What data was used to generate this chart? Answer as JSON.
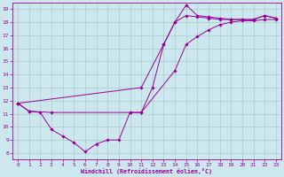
{
  "xlabel": "Windchill (Refroidissement éolien,°C)",
  "background_color": "#cce8ee",
  "line_color": "#990099",
  "grid_color": "#aacccc",
  "xlim": [
    -0.5,
    23.5
  ],
  "ylim": [
    7.5,
    19.5
  ],
  "xticks": [
    0,
    1,
    2,
    3,
    4,
    5,
    6,
    7,
    8,
    9,
    10,
    11,
    12,
    13,
    14,
    15,
    16,
    17,
    18,
    19,
    20,
    21,
    22,
    23
  ],
  "yticks": [
    8,
    9,
    10,
    11,
    12,
    13,
    14,
    15,
    16,
    17,
    18,
    19
  ],
  "line1_x": [
    0,
    1,
    2,
    3,
    4,
    5,
    6,
    7,
    8,
    9,
    10,
    11,
    12,
    13,
    14,
    15,
    16,
    17,
    18,
    19,
    20,
    21,
    22,
    23
  ],
  "line1_y": [
    11.8,
    11.2,
    11.1,
    9.8,
    9.3,
    8.8,
    8.1,
    8.7,
    9.0,
    9.0,
    11.1,
    11.1,
    13.0,
    16.3,
    18.0,
    18.5,
    18.4,
    18.3,
    18.2,
    18.2,
    18.2,
    18.2,
    18.5,
    18.3
  ],
  "line2_x": [
    0,
    1,
    3,
    10,
    11,
    14,
    15,
    16,
    17,
    18,
    19,
    20,
    21,
    22,
    23
  ],
  "line2_y": [
    11.8,
    11.2,
    11.1,
    11.1,
    11.1,
    14.3,
    16.3,
    16.9,
    17.4,
    17.8,
    18.0,
    18.1,
    18.1,
    18.2,
    18.2
  ],
  "line3_x": [
    0,
    11,
    13,
    14,
    15,
    16,
    17,
    18,
    19,
    20,
    21,
    22,
    23
  ],
  "line3_y": [
    11.8,
    13.0,
    16.3,
    18.0,
    19.3,
    18.5,
    18.4,
    18.3,
    18.2,
    18.2,
    18.2,
    18.5,
    18.3
  ]
}
